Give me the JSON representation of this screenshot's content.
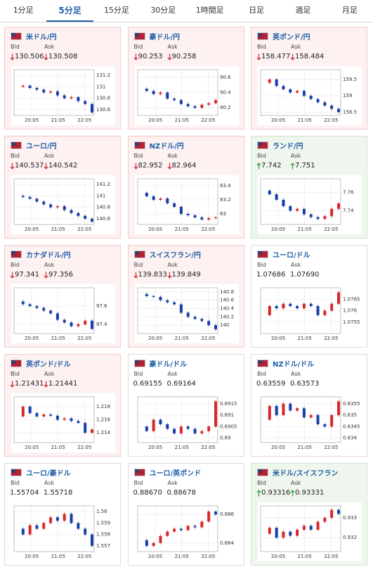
{
  "tabs": [
    "1分足",
    "5分足",
    "15分足",
    "30分足",
    "1時間足",
    "日足",
    "週足",
    "月足"
  ],
  "selected_tab": 1,
  "labels": {
    "bid": "Bid",
    "ask": "Ask"
  },
  "xticks": [
    "20:05",
    "21:05",
    "22:05"
  ],
  "cards": [
    {
      "name": "米ドル/円",
      "bid": "130.506",
      "ask": "130.508",
      "trend": "down",
      "ylim": [
        130.5,
        131.3
      ],
      "yticks": [
        131.2,
        131,
        130.8,
        130.6
      ],
      "values": [
        131.0,
        131.02,
        130.98,
        130.95,
        130.9,
        130.92,
        130.85,
        130.8,
        130.82,
        130.75,
        130.7,
        130.55
      ]
    },
    {
      "name": "豪ドル/円",
      "bid": "90.253",
      "ask": "90.258",
      "trend": "down",
      "ylim": [
        90.1,
        90.7
      ],
      "yticks": [
        90.6,
        90.4,
        90.2
      ],
      "values": [
        90.45,
        90.42,
        90.38,
        90.4,
        90.32,
        90.3,
        90.25,
        90.22,
        90.2,
        90.24,
        90.26,
        90.3
      ]
    },
    {
      "name": "英ポンド/円",
      "bid": "158.477",
      "ask": "158.484",
      "trend": "down",
      "ylim": [
        158.4,
        159.8
      ],
      "yticks": [
        159.5,
        159,
        158.5
      ],
      "values": [
        159.4,
        159.5,
        159.3,
        159.2,
        159.1,
        159.15,
        159.0,
        158.9,
        158.8,
        158.7,
        158.6,
        158.5
      ]
    },
    {
      "name": "ユーロ/円",
      "bid": "140.537",
      "ask": "140.542",
      "trend": "down",
      "ylim": [
        140.5,
        141.3
      ],
      "yticks": [
        141.2,
        141,
        140.8,
        140.6
      ],
      "values": [
        141.0,
        140.98,
        140.95,
        140.9,
        140.85,
        140.8,
        140.82,
        140.75,
        140.7,
        140.65,
        140.6,
        140.55
      ]
    },
    {
      "name": "NZドル/円",
      "bid": "82.952",
      "ask": "82.964",
      "trend": "down",
      "ylim": [
        82.85,
        83.5
      ],
      "yticks": [
        83.4,
        83.2,
        83
      ],
      "values": [
        83.3,
        83.25,
        83.2,
        83.22,
        83.15,
        83.1,
        83.0,
        82.98,
        82.95,
        82.92,
        82.94,
        82.95
      ]
    },
    {
      "name": "ランド/円",
      "bid": "7.742",
      "ask": "7.751",
      "trend": "up",
      "ylim": [
        7.725,
        7.775
      ],
      "yticks": [
        7.76,
        7.74
      ],
      "values": [
        7.762,
        7.758,
        7.752,
        7.745,
        7.74,
        7.742,
        7.736,
        7.733,
        7.731,
        7.734,
        7.742,
        7.748
      ]
    },
    {
      "name": "カナダドル/円",
      "bid": "97.341",
      "ask": "97.356",
      "trend": "down",
      "ylim": [
        97.3,
        97.8
      ],
      "yticks": [
        97.6,
        97.4
      ],
      "values": [
        97.65,
        97.62,
        97.6,
        97.58,
        97.55,
        97.52,
        97.45,
        97.42,
        97.38,
        97.4,
        97.44,
        97.35
      ]
    },
    {
      "name": "スイスフラン/円",
      "bid": "139.833",
      "ask": "139.849",
      "trend": "down",
      "ylim": [
        139.8,
        140.9
      ],
      "yticks": [
        140.8,
        140.6,
        140.4,
        140.2,
        140
      ],
      "values": [
        140.75,
        140.7,
        140.68,
        140.6,
        140.55,
        140.5,
        140.3,
        140.2,
        140.15,
        140.1,
        140.0,
        139.9
      ]
    },
    {
      "name": "ユーロ/ドル",
      "bid": "1.07686",
      "ask": "1.07690",
      "trend": null,
      "ylim": [
        1.075,
        1.077
      ],
      "yticks": [
        1.0765,
        1.076,
        1.0755
      ],
      "values": [
        1.0758,
        1.0762,
        1.0761,
        1.0763,
        1.0762,
        1.0761,
        1.0763,
        1.0762,
        1.0758,
        1.076,
        1.0763,
        1.0768
      ]
    },
    {
      "name": "英ポンド/ドル",
      "bid": "1.21431",
      "ask": "1.21441",
      "trend": "down",
      "ylim": [
        1.2125,
        1.2195
      ],
      "yticks": [
        1.218,
        1.216,
        1.214
      ],
      "values": [
        1.2165,
        1.218,
        1.217,
        1.2165,
        1.2168,
        1.2166,
        1.216,
        1.2162,
        1.2158,
        1.2155,
        1.214,
        1.2145
      ]
    },
    {
      "name": "豪ドル/ドル",
      "bid": "0.69155",
      "ask": "0.69164",
      "trend": null,
      "ylim": [
        0.6898,
        0.6918
      ],
      "yticks": [
        0.6915,
        0.691,
        0.6905,
        0.69
      ],
      "values": [
        0.6905,
        0.6903,
        0.6908,
        0.6906,
        0.6904,
        0.6902,
        0.6905,
        0.6904,
        0.6902,
        0.6903,
        0.6905,
        0.6916
      ]
    },
    {
      "name": "NZドル/ドル",
      "bid": "0.63559",
      "ask": "0.63573",
      "trend": null,
      "ylim": [
        0.6338,
        0.6358
      ],
      "yticks": [
        0.6355,
        0.635,
        0.6345,
        0.634
      ],
      "values": [
        0.6348,
        0.6354,
        0.635,
        0.6355,
        0.6352,
        0.6353,
        0.6349,
        0.635,
        0.6346,
        0.6345,
        0.635,
        0.6356
      ]
    },
    {
      "name": "ユーロ/豪ドル",
      "bid": "1.55704",
      "ask": "1.55718",
      "trend": null,
      "ylim": [
        1.5565,
        1.5605
      ],
      "yticks": [
        1.56,
        1.559,
        1.558,
        1.557
      ],
      "values": [
        1.5585,
        1.558,
        1.5588,
        1.5585,
        1.559,
        1.5595,
        1.5592,
        1.5598,
        1.559,
        1.5585,
        1.558,
        1.557
      ]
    },
    {
      "name": "ユーロ/英ポンド",
      "bid": "0.88670",
      "ask": "0.88678",
      "trend": null,
      "ylim": [
        0.8834,
        0.8866
      ],
      "yticks": [
        0.886,
        0.884
      ],
      "values": [
        0.8842,
        0.8838,
        0.884,
        0.8845,
        0.8848,
        0.885,
        0.8849,
        0.8852,
        0.8851,
        0.8855,
        0.8862,
        0.886
      ]
    },
    {
      "name": "米ドル/スイスフラン",
      "bid": "0.93316",
      "ask": "0.93331",
      "trend": "up",
      "ylim": [
        0.9313,
        0.9336
      ],
      "yticks": [
        0.933,
        0.932
      ],
      "values": [
        0.9322,
        0.9325,
        0.932,
        0.9323,
        0.9321,
        0.9324,
        0.9326,
        0.9324,
        0.9328,
        0.933,
        0.9334,
        0.9332
      ]
    }
  ]
}
